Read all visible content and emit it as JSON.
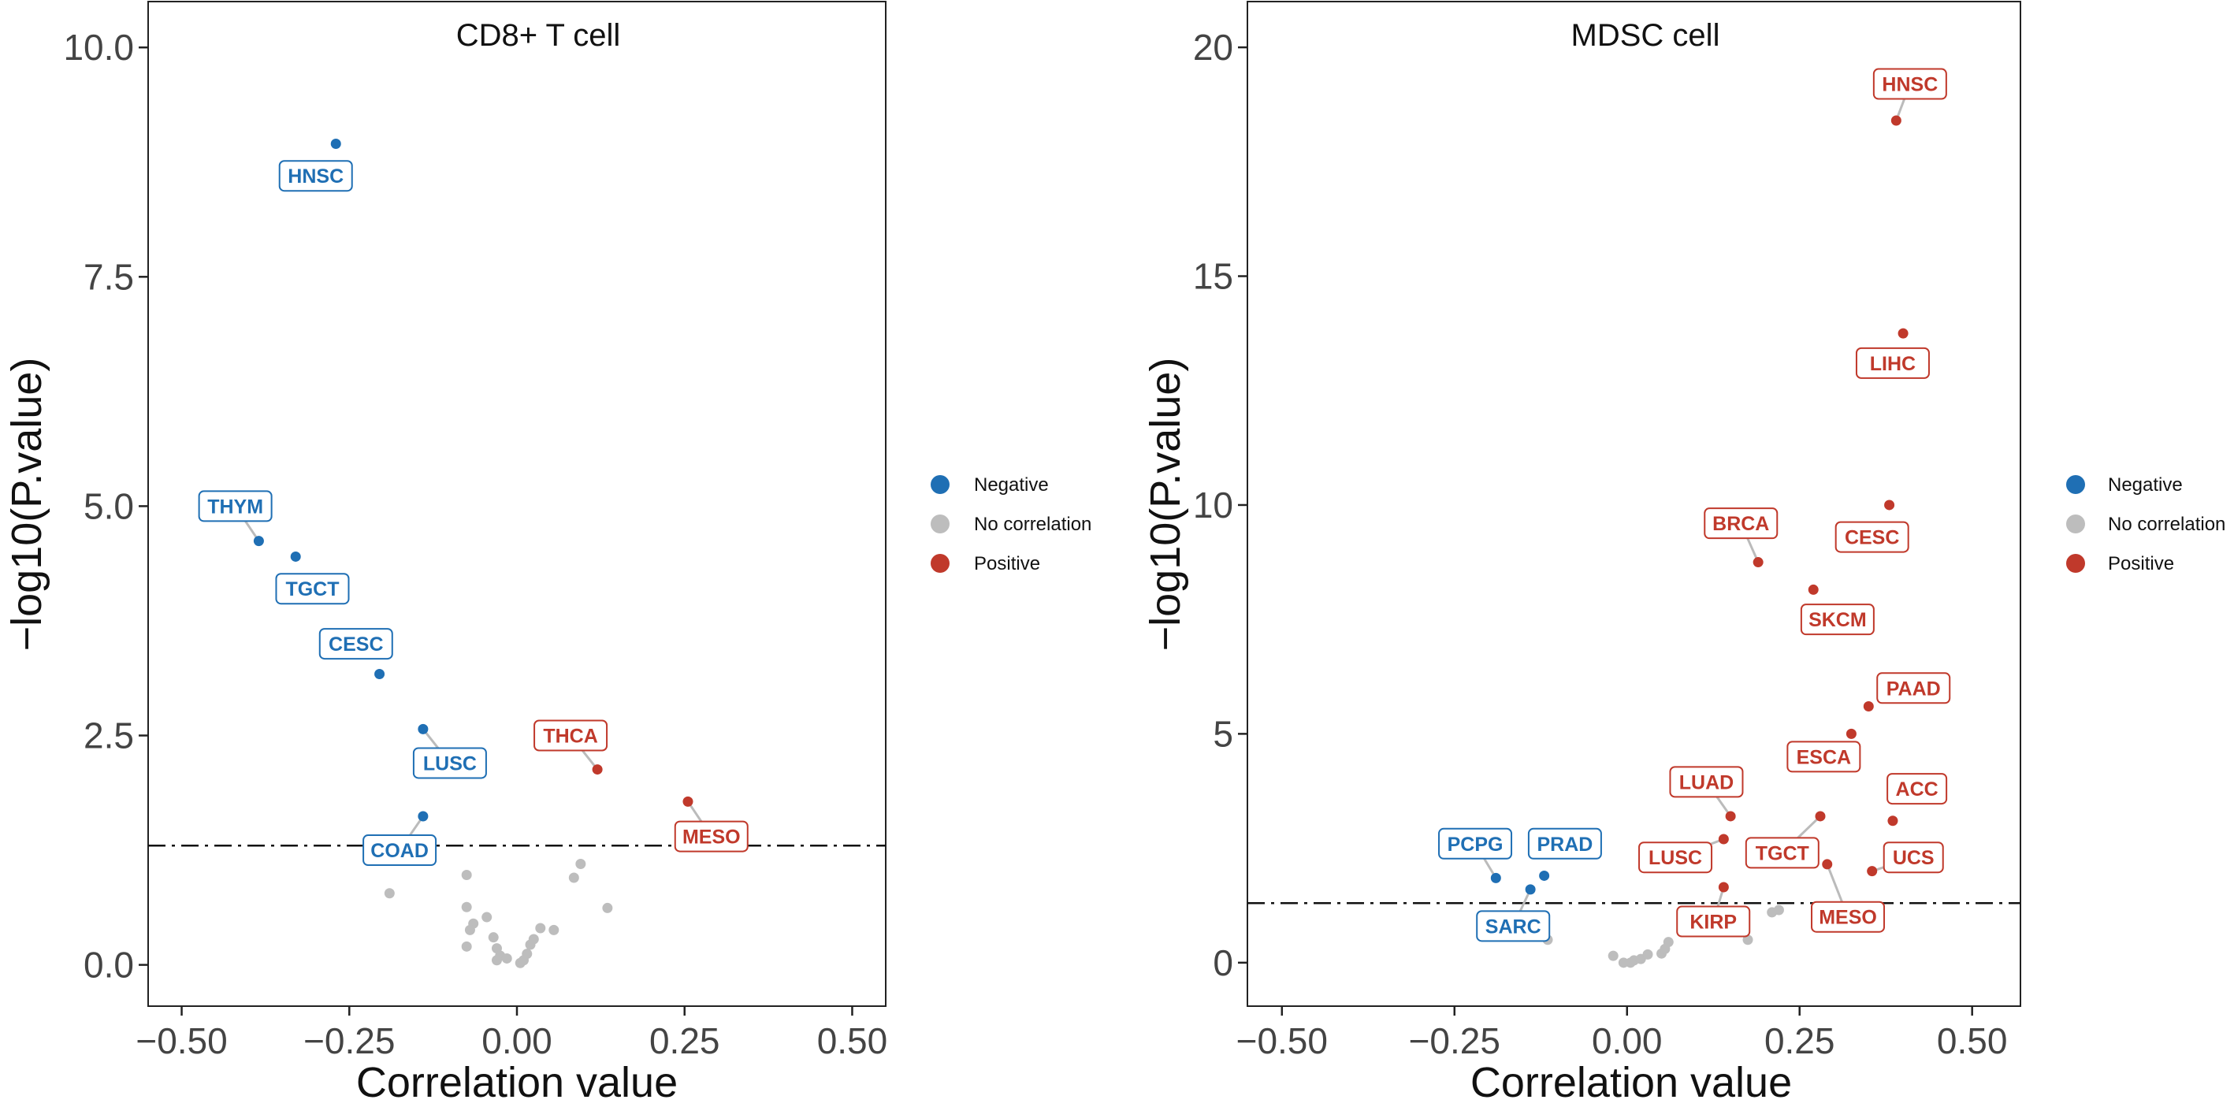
{
  "colors": {
    "negative": "#1f6fb4",
    "none": "#bdbdbd",
    "positive": "#c0392b"
  },
  "legend_labels": {
    "negative": "Negative",
    "none": "No correlation",
    "positive": "Positive"
  },
  "chart_data": [
    {
      "type": "scatter",
      "title": "CD8+ T cell",
      "xlabel": "Correlation value",
      "ylabel": "−log10(P.value)",
      "xlim": [
        -0.55,
        0.55
      ],
      "ylim": [
        -0.45,
        10.5
      ],
      "xticks": [
        -0.5,
        -0.25,
        0,
        0.25,
        0.5
      ],
      "xtick_labels": [
        "−0.50",
        "−0.25",
        "0.00",
        "0.25",
        "0.50"
      ],
      "yticks": [
        0,
        2.5,
        5,
        7.5,
        10
      ],
      "ytick_labels": [
        "0.0",
        "2.5",
        "5.0",
        "7.5",
        "10.0"
      ],
      "threshold": 1.3,
      "legend": "right",
      "points": [
        {
          "x": -0.27,
          "y": 8.95,
          "group": "negative",
          "label": "HNSC",
          "lx": -0.3,
          "ly": 8.6
        },
        {
          "x": -0.385,
          "y": 4.62,
          "group": "negative",
          "label": "THYM",
          "lx": -0.42,
          "ly": 5.0
        },
        {
          "x": -0.33,
          "y": 4.45,
          "group": "negative",
          "label": "TGCT",
          "lx": -0.305,
          "ly": 4.1
        },
        {
          "x": -0.205,
          "y": 3.17,
          "group": "negative",
          "label": "CESC",
          "lx": -0.24,
          "ly": 3.5
        },
        {
          "x": -0.14,
          "y": 2.57,
          "group": "negative",
          "label": "LUSC",
          "lx": -0.1,
          "ly": 2.2
        },
        {
          "x": -0.14,
          "y": 1.62,
          "group": "negative",
          "label": "COAD",
          "lx": -0.175,
          "ly": 1.25
        },
        {
          "x": 0.12,
          "y": 2.13,
          "group": "positive",
          "label": "THCA",
          "lx": 0.08,
          "ly": 2.5
        },
        {
          "x": 0.255,
          "y": 1.78,
          "group": "positive",
          "label": "MESO",
          "lx": 0.29,
          "ly": 1.4
        },
        {
          "x": -0.19,
          "y": 0.78,
          "group": "none"
        },
        {
          "x": -0.075,
          "y": 0.98,
          "group": "none"
        },
        {
          "x": -0.075,
          "y": 0.63,
          "group": "none"
        },
        {
          "x": -0.065,
          "y": 0.45,
          "group": "none"
        },
        {
          "x": -0.07,
          "y": 0.38,
          "group": "none"
        },
        {
          "x": -0.075,
          "y": 0.2,
          "group": "none"
        },
        {
          "x": -0.045,
          "y": 0.52,
          "group": "none"
        },
        {
          "x": -0.035,
          "y": 0.3,
          "group": "none"
        },
        {
          "x": -0.03,
          "y": 0.18,
          "group": "none"
        },
        {
          "x": -0.025,
          "y": 0.1,
          "group": "none"
        },
        {
          "x": -0.03,
          "y": 0.05,
          "group": "none"
        },
        {
          "x": -0.015,
          "y": 0.07,
          "group": "none"
        },
        {
          "x": 0.005,
          "y": 0.02,
          "group": "none"
        },
        {
          "x": 0.01,
          "y": 0.05,
          "group": "none"
        },
        {
          "x": 0.015,
          "y": 0.12,
          "group": "none"
        },
        {
          "x": 0.02,
          "y": 0.22,
          "group": "none"
        },
        {
          "x": 0.025,
          "y": 0.28,
          "group": "none"
        },
        {
          "x": 0.035,
          "y": 0.4,
          "group": "none"
        },
        {
          "x": 0.055,
          "y": 0.38,
          "group": "none"
        },
        {
          "x": 0.085,
          "y": 0.95,
          "group": "none"
        },
        {
          "x": 0.095,
          "y": 1.1,
          "group": "none"
        },
        {
          "x": 0.135,
          "y": 0.62,
          "group": "none"
        }
      ]
    },
    {
      "type": "scatter",
      "title": "MDSC cell",
      "xlabel": "Correlation value",
      "ylabel": "−log10(P.value)",
      "xlim": [
        -0.55,
        0.57
      ],
      "ylim": [
        -0.95,
        21.0
      ],
      "xticks": [
        -0.5,
        -0.25,
        0,
        0.25,
        0.5
      ],
      "xtick_labels": [
        "−0.50",
        "−0.25",
        "0.00",
        "0.25",
        "0.50"
      ],
      "yticks": [
        0,
        5,
        10,
        15,
        20
      ],
      "ytick_labels": [
        "0",
        "5",
        "10",
        "15",
        "20"
      ],
      "threshold": 1.3,
      "legend": "right",
      "points": [
        {
          "x": 0.39,
          "y": 18.4,
          "group": "positive",
          "label": "HNSC",
          "lx": 0.41,
          "ly": 19.2
        },
        {
          "x": 0.4,
          "y": 13.75,
          "group": "positive",
          "label": "LIHC",
          "lx": 0.385,
          "ly": 13.1
        },
        {
          "x": 0.38,
          "y": 10.0,
          "group": "positive",
          "label": "CESC",
          "lx": 0.355,
          "ly": 9.3
        },
        {
          "x": 0.19,
          "y": 8.75,
          "group": "positive",
          "label": "BRCA",
          "lx": 0.165,
          "ly": 9.6
        },
        {
          "x": 0.27,
          "y": 8.15,
          "group": "positive",
          "label": "SKCM",
          "lx": 0.305,
          "ly": 7.5
        },
        {
          "x": 0.35,
          "y": 5.6,
          "group": "positive",
          "label": "PAAD",
          "lx": 0.415,
          "ly": 6.0
        },
        {
          "x": 0.325,
          "y": 5.0,
          "group": "positive",
          "label": "ESCA",
          "lx": 0.285,
          "ly": 4.5
        },
        {
          "x": 0.15,
          "y": 3.2,
          "group": "positive",
          "label": "LUAD",
          "lx": 0.115,
          "ly": 3.95
        },
        {
          "x": 0.385,
          "y": 3.1,
          "group": "positive",
          "label": "ACC",
          "lx": 0.42,
          "ly": 3.8
        },
        {
          "x": 0.28,
          "y": 3.2,
          "group": "positive",
          "label": "TGCT",
          "lx": 0.225,
          "ly": 2.4
        },
        {
          "x": 0.14,
          "y": 2.7,
          "group": "positive",
          "label": "LUSC",
          "lx": 0.07,
          "ly": 2.3
        },
        {
          "x": 0.29,
          "y": 2.15,
          "group": "positive",
          "label": "MESO",
          "lx": 0.32,
          "ly": 1.0
        },
        {
          "x": 0.355,
          "y": 2.0,
          "group": "positive",
          "label": "UCS",
          "lx": 0.415,
          "ly": 2.3
        },
        {
          "x": 0.14,
          "y": 1.65,
          "group": "positive",
          "label": "KIRP",
          "lx": 0.125,
          "ly": 0.9
        },
        {
          "x": -0.19,
          "y": 1.85,
          "group": "negative",
          "label": "PCPG",
          "lx": -0.22,
          "ly": 2.6
        },
        {
          "x": -0.12,
          "y": 1.9,
          "group": "negative",
          "label": "PRAD",
          "lx": -0.09,
          "ly": 2.6
        },
        {
          "x": -0.14,
          "y": 1.6,
          "group": "negative",
          "label": "SARC",
          "lx": -0.165,
          "ly": 0.8
        },
        {
          "x": -0.115,
          "y": 0.5,
          "group": "none"
        },
        {
          "x": -0.02,
          "y": 0.15,
          "group": "none"
        },
        {
          "x": -0.005,
          "y": 0.0,
          "group": "none"
        },
        {
          "x": 0.005,
          "y": 0.0,
          "group": "none"
        },
        {
          "x": 0.01,
          "y": 0.05,
          "group": "none"
        },
        {
          "x": 0.02,
          "y": 0.08,
          "group": "none"
        },
        {
          "x": 0.03,
          "y": 0.18,
          "group": "none"
        },
        {
          "x": 0.05,
          "y": 0.2,
          "group": "none"
        },
        {
          "x": 0.055,
          "y": 0.3,
          "group": "none"
        },
        {
          "x": 0.06,
          "y": 0.45,
          "group": "none"
        },
        {
          "x": 0.175,
          "y": 0.5,
          "group": "none"
        },
        {
          "x": 0.21,
          "y": 1.1,
          "group": "none"
        },
        {
          "x": 0.22,
          "y": 1.15,
          "group": "none"
        }
      ]
    }
  ]
}
